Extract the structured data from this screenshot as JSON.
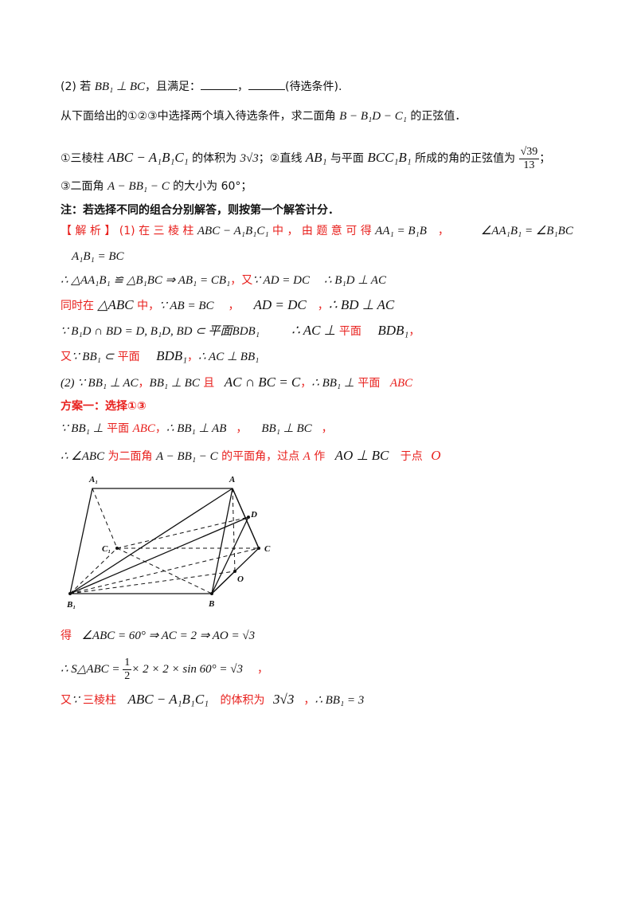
{
  "lines": {
    "l1": {
      "pre": "(2) 若 ",
      "m1": "BB₁ ⊥ BC",
      "mid": "，且满足：",
      "sep": "，",
      "post": "(待选条件)."
    },
    "l2": {
      "a": "从下面给出的①②③中选择两个填入待选条件，求二面角 ",
      "m": "B − B₁D − C₁",
      "b": " 的正弦值．"
    },
    "l3": {
      "a": "①三棱柱 ",
      "m1": "ABC − A₁B₁C₁",
      "b": " 的体积为 ",
      "m2": "3√3",
      "c": "；②直线 ",
      "m3": "AB₁",
      "d": " 与平面 ",
      "m4": "BCC₁B₁",
      "e": " 所成的角的正弦值为 ",
      "num": "√39",
      "den": "13",
      "f": "；"
    },
    "l4": {
      "a": "③二面角 ",
      "m": "A − BB₁ − C",
      "b": " 的大小为 60°；"
    },
    "l5": {
      "text": "注：若选择不同的组合分别解答，则按第一个解答计分．"
    },
    "l6": {
      "a": "【 解 析 】 (1) 在 三 棱 柱 ",
      "m1": "ABC − A₁B₁C₁",
      "b": " 中 ， 由 题 意 可 得 ",
      "m2": "AA₁ = B₁B",
      "c": "，",
      "m3": "∠AA₁B₁ = ∠B₁BC"
    },
    "l7": {
      "m": "A₁B₁ = BC"
    },
    "l8": {
      "m1": "∴ △AA₁B₁ ≌ △B₁BC ⇒ AB₁ = CB₁",
      "a": "，又",
      "m2": "∵ AD = DC",
      "m3": "∴ B₁D ⊥ AC"
    },
    "l9": {
      "a": "同时在 ",
      "m1": "△ABC",
      "b": " 中，",
      "m2": "∵ AB = BC",
      "c": "，",
      "m3": "AD = DC",
      "d": "，",
      "m4": "∴ BD ⊥ AC"
    },
    "l10": {
      "m1": "∵ B₁D ∩ BD = D, B₁D, BD ⊂ 平面BDB₁",
      "m2": "∴ AC ⊥",
      "a": " 平面 ",
      "m3": "BDB₁",
      "b": "，"
    },
    "l11": {
      "a": "又",
      "m1": "∵ BB₁ ⊂",
      "b": " 平面 ",
      "m2": "BDB₁",
      "c": "，",
      "m3": "∴ AC ⊥ BB₁"
    },
    "l12": {
      "m1": "(2) ∵ BB₁ ⊥ AC",
      "c1": "，",
      "m2": "BB₁ ⊥ BC",
      "a": " 且 ",
      "m3": "AC ∩ BC = C",
      "c2": "，",
      "m4": "∴ BB₁ ⊥",
      "b": " 平面 ",
      "m5": "ABC"
    },
    "l13": {
      "text": "方案一：选择①③"
    },
    "l14": {
      "m1": "∵ BB₁ ⊥",
      "a": " 平面 ",
      "m2": "ABC",
      "b": "，",
      "m3": "∴ BB₁ ⊥ AB",
      "c": "，",
      "m4": "BB₁ ⊥ BC",
      "d": "，"
    },
    "l15": {
      "m1": "∴ ∠ABC",
      "a": " 为二面角 ",
      "m2": "A − BB₁ − C",
      "b": " 的平面角，过点 ",
      "m3": "A",
      "c": " 作 ",
      "m4": "AO ⊥ BC",
      "d": " 于点 ",
      "m5": "O"
    },
    "l16": {
      "a": "得 ",
      "m": "∠ABC = 60° ⇒ AC = 2 ⇒ AO = √3"
    },
    "l17": {
      "m1": "∴ S△ABC = ",
      "num": "1",
      "den": "2",
      "m2": "× 2 × 2 × sin 60° = √3",
      "a": "，"
    },
    "l18": {
      "a": "又",
      "m1": "∵",
      "b": " 三棱柱 ",
      "m2": "ABC − A₁B₁C₁",
      "c": " 的体积为 ",
      "m3": "3√3",
      "d": "，",
      "m4": "∴ BB₁ = 3"
    }
  },
  "figure": {
    "labels": {
      "A1": "A₁",
      "A": "A",
      "D": "D",
      "C1": "C₁",
      "C": "C",
      "O": "O",
      "B1": "B₁",
      "B": "B"
    }
  }
}
